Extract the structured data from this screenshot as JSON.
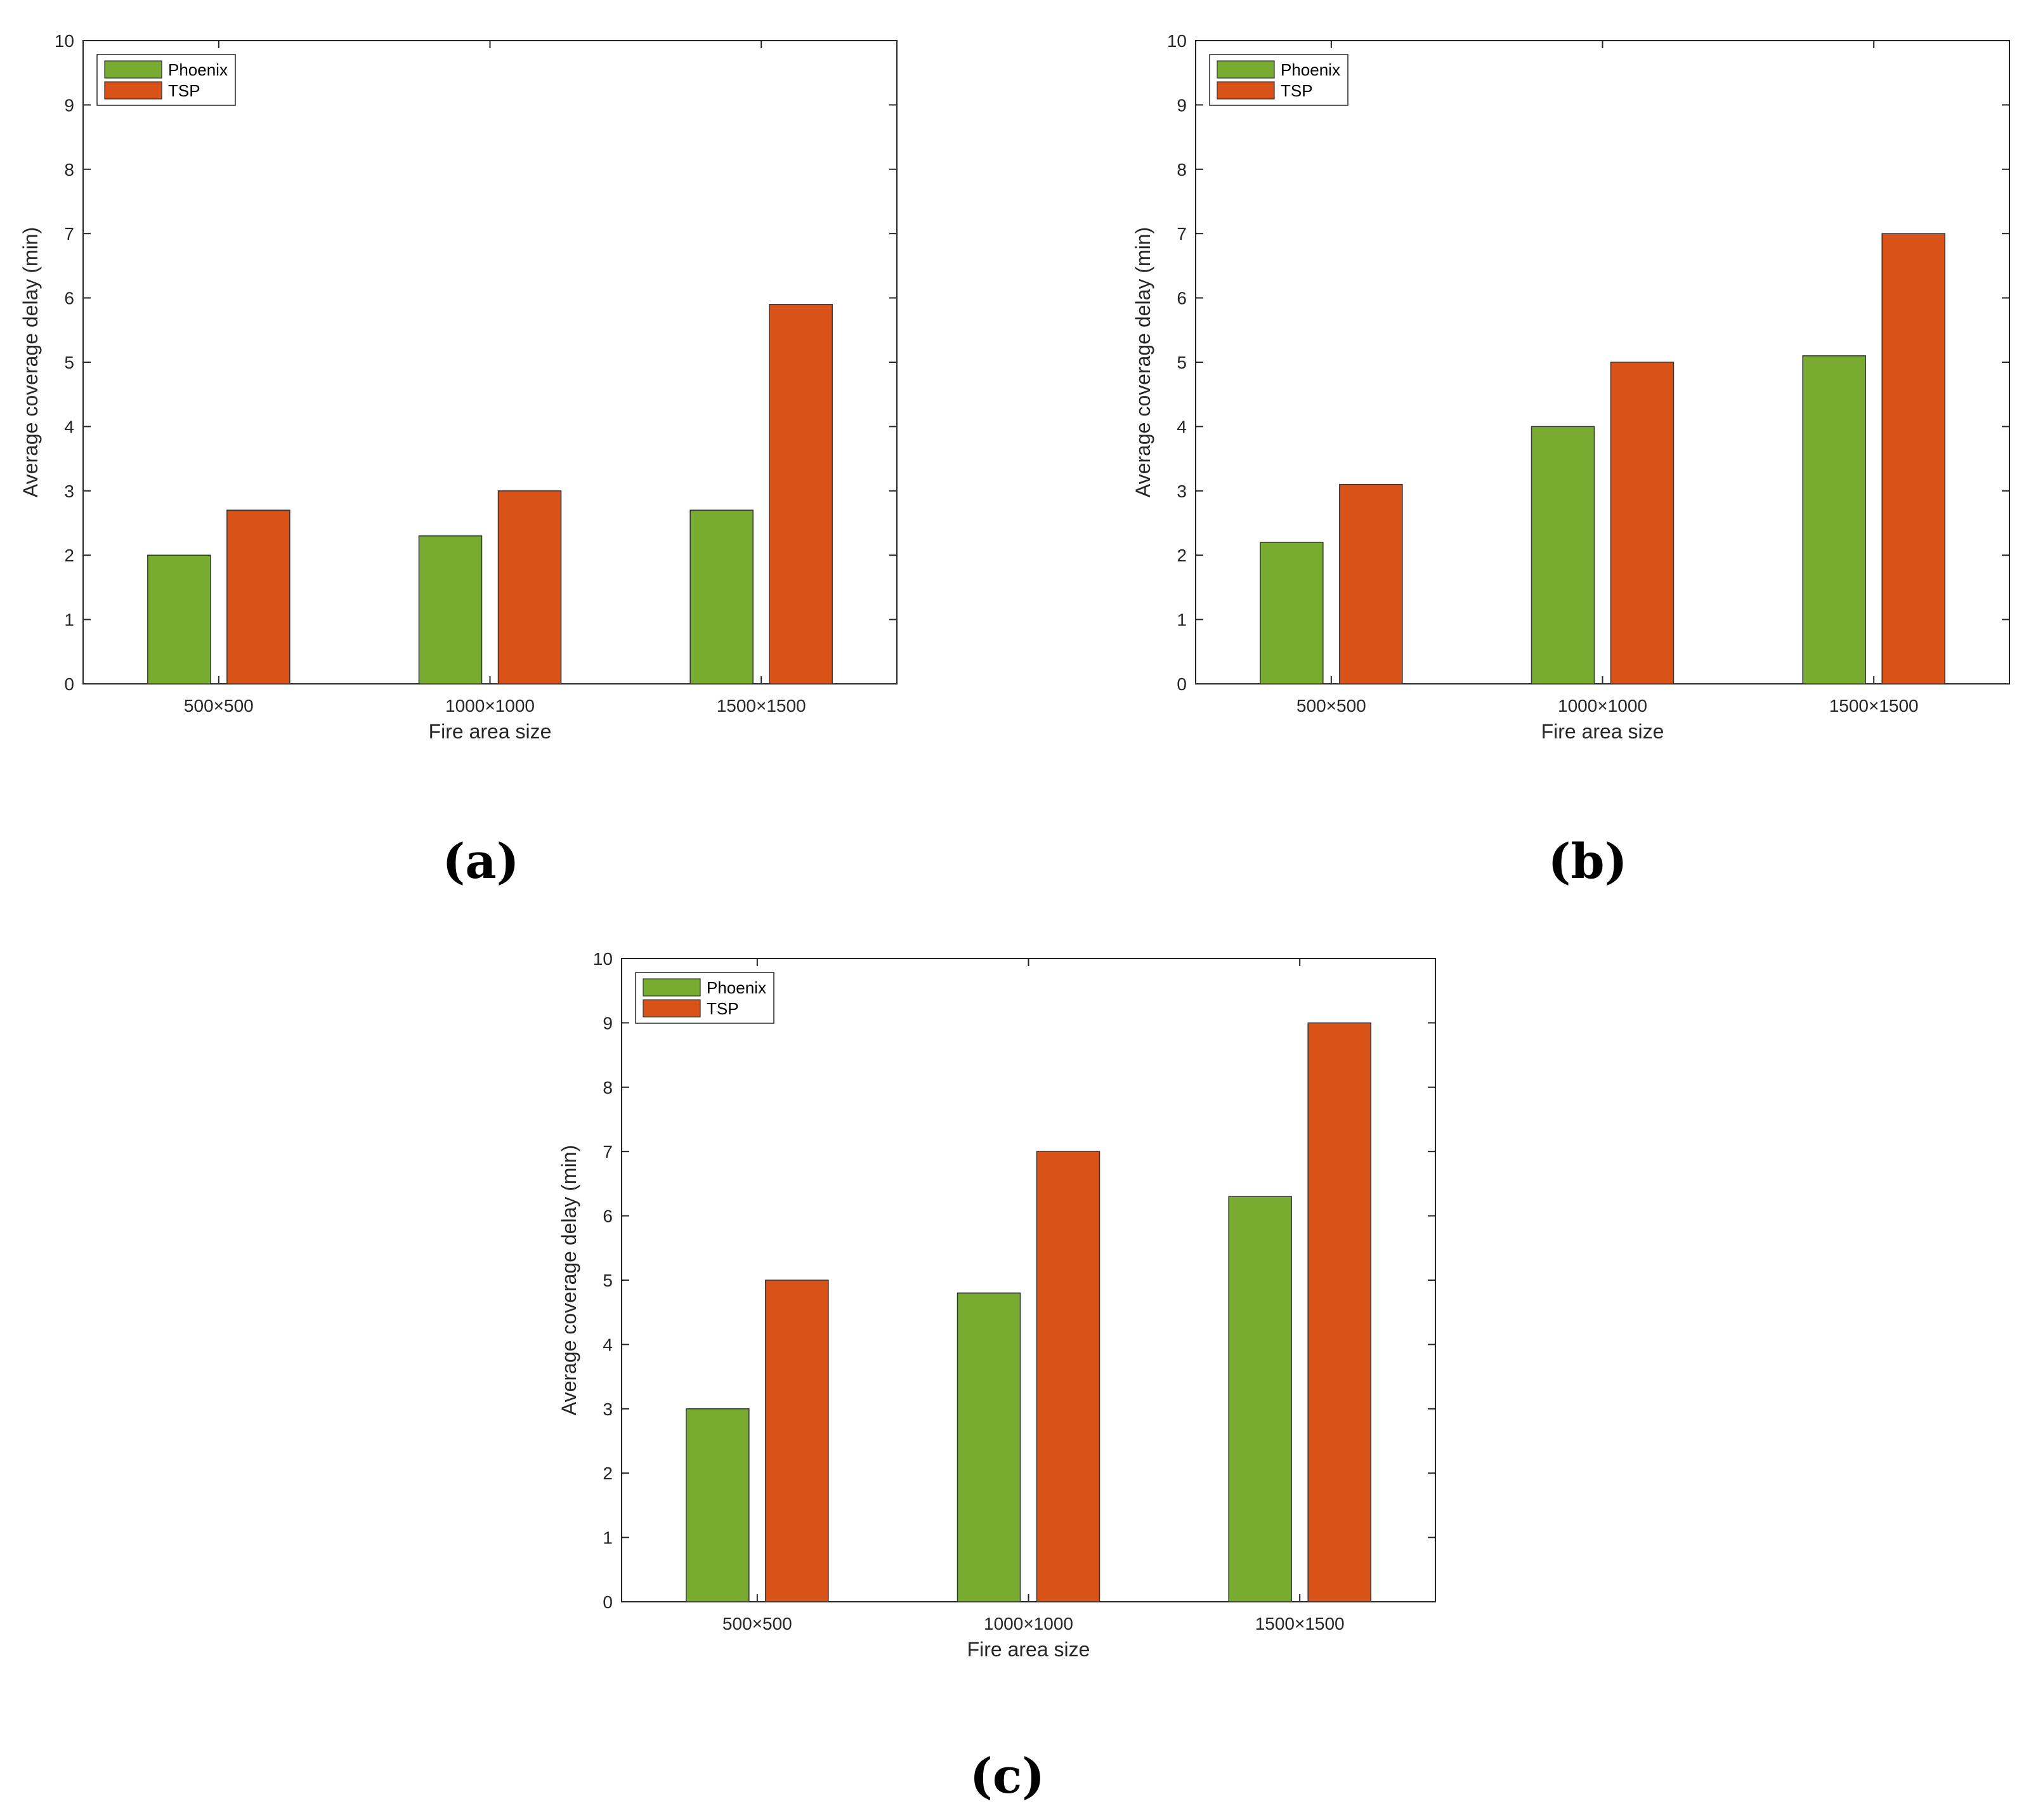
{
  "chart_data": [
    {
      "type": "bar",
      "panel_label": "(a)",
      "categories": [
        "500×500",
        "1000×1000",
        "1500×1500"
      ],
      "series": [
        {
          "name": "Phoenix",
          "values": [
            2.0,
            2.3,
            2.7
          ]
        },
        {
          "name": "TSP",
          "values": [
            2.7,
            3.0,
            5.9
          ]
        }
      ],
      "title": "",
      "xlabel": "Fire area size",
      "ylabel": "Average coverage delay (min)",
      "ylim": [
        0,
        10
      ],
      "yticks": [
        "0",
        "1",
        "2",
        "3",
        "4",
        "5",
        "6",
        "7",
        "8",
        "9",
        "10"
      ],
      "grid": false,
      "legend": "top-left"
    },
    {
      "type": "bar",
      "panel_label": "(b)",
      "categories": [
        "500×500",
        "1000×1000",
        "1500×1500"
      ],
      "series": [
        {
          "name": "Phoenix",
          "values": [
            2.2,
            4.0,
            5.1
          ]
        },
        {
          "name": "TSP",
          "values": [
            3.1,
            5.0,
            7.0
          ]
        }
      ],
      "title": "",
      "xlabel": "Fire area size",
      "ylabel": "Average coverage delay (min)",
      "ylim": [
        0,
        10
      ],
      "yticks": [
        "0",
        "1",
        "2",
        "3",
        "4",
        "5",
        "6",
        "7",
        "8",
        "9",
        "10"
      ],
      "grid": false,
      "legend": "top-left"
    },
    {
      "type": "bar",
      "panel_label": "(c)",
      "categories": [
        "500×500",
        "1000×1000",
        "1500×1500"
      ],
      "series": [
        {
          "name": "Phoenix",
          "values": [
            3.0,
            4.8,
            6.3
          ]
        },
        {
          "name": "TSP",
          "values": [
            5.0,
            7.0,
            9.0
          ]
        }
      ],
      "title": "",
      "xlabel": "Fire area size",
      "ylabel": "Average coverage delay (min)",
      "ylim": [
        0,
        10
      ],
      "yticks": [
        "0",
        "1",
        "2",
        "3",
        "4",
        "5",
        "6",
        "7",
        "8",
        "9",
        "10"
      ],
      "grid": false,
      "legend": "top-left"
    }
  ],
  "colors": {
    "Phoenix": "#77AC30",
    "TSP": "#D95319",
    "axis": "#262626",
    "bar_edge": "#333333"
  }
}
